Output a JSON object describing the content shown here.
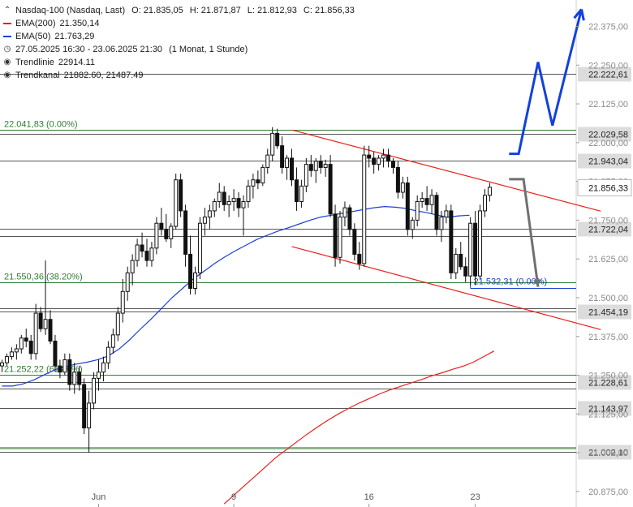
{
  "legend": {
    "instrument": "Nasdaq-100 (Nasdaq, Last)",
    "open": "O: 21.835,05",
    "high": "H: 21.871,87",
    "low": "L: 21.812,93",
    "close": "C: 21.856,33",
    "ema200_label": "EMA(200)",
    "ema200_value": "21.350,14",
    "ema50_label": "EMA(50)",
    "ema50_value": "21.763,29",
    "period": "27.05.2025 16:30 - 23.06.2025 21:30",
    "period_detail": "(1 Monat, 1 Stunde)",
    "trendline_label": "Trendlinie",
    "trendline_value": "22914.11",
    "trendchannel_label": "Trendkanal",
    "trendchannel_value": "21882.60, 21487.49"
  },
  "colors": {
    "ema200": "#e8211c",
    "ema50": "#1a3fd6",
    "fib": "#2e7d32",
    "trend": "#e8211c",
    "projection_up": "#1240e0",
    "projection_down": "#707070",
    "candle": "#111111",
    "price_box": "#ffffff",
    "level_box": "#dcdcdc"
  },
  "chart_data": {
    "type": "candlestick",
    "ylim": [
      20825,
      22460
    ],
    "yticks": [
      {
        "value": 20875,
        "label": "20.875,00"
      },
      {
        "value": 21000,
        "label": "21.000,00"
      },
      {
        "value": 21125,
        "label": "21.125,00"
      },
      {
        "value": 21250,
        "label": "21.250,00"
      },
      {
        "value": 21375,
        "label": "21.375,00"
      },
      {
        "value": 21500,
        "label": "21.500,00"
      },
      {
        "value": 21625,
        "label": "21.625,00"
      },
      {
        "value": 21750,
        "label": "21.750,00"
      },
      {
        "value": 21875,
        "label": "21.875,00"
      },
      {
        "value": 22000,
        "label": "22.000,00"
      },
      {
        "value": 22125,
        "label": "22.125,00"
      },
      {
        "value": 22250,
        "label": "22.250,00"
      },
      {
        "value": 22375,
        "label": "22.375,00"
      }
    ],
    "xticks": [
      {
        "idx": 20,
        "label": "Jun"
      },
      {
        "idx": 48,
        "label": "9"
      },
      {
        "idx": 76,
        "label": "16"
      },
      {
        "idx": 98,
        "label": "23"
      }
    ],
    "current_price": {
      "value": 21856.33,
      "label": "21.856,33"
    },
    "levels": [
      {
        "value": 22222.61,
        "label": "22.222,61"
      },
      {
        "value": 22029.58,
        "label": "22.029,58"
      },
      {
        "value": 21943.04,
        "label": "21.943,04"
      },
      {
        "value": 21722.04,
        "label": "21.722,04"
      },
      {
        "value": 21700.0,
        "label": ""
      },
      {
        "value": 21465.0,
        "label": ""
      },
      {
        "value": 21454.19,
        "label": "21.454,19"
      },
      {
        "value": 21228.61,
        "label": "21.228,61"
      },
      {
        "value": 21208.0,
        "label": ""
      },
      {
        "value": 21143.97,
        "label": "21.143,97"
      },
      {
        "value": 21002.1,
        "label": "21.002,10"
      }
    ],
    "fib_levels": [
      {
        "value": 22041.83,
        "label": "22.041,83 (0.00%)"
      },
      {
        "value": 21550.36,
        "label": "21.550,36 (38.20%)"
      },
      {
        "value": 21252.22,
        "label": "21.252,22 (61.80%)"
      },
      {
        "value": 21015.0,
        "label": ""
      }
    ],
    "fib_target": {
      "value": 21532.3,
      "label": "21.532,31 (0.00%)"
    },
    "trend_upper": [
      {
        "idx": 60,
        "y": 22041
      },
      {
        "idx": 124,
        "y": 21779
      }
    ],
    "trend_lower": [
      {
        "idx": 60,
        "y": 21665
      },
      {
        "idx": 124,
        "y": 21397
      }
    ],
    "projection_up": [
      [
        105,
        21964
      ],
      [
        107,
        21964
      ],
      [
        111,
        22260
      ],
      [
        114,
        22055
      ],
      [
        120,
        22430
      ]
    ],
    "projection_down": [
      [
        105,
        21882
      ],
      [
        108,
        21882
      ],
      [
        111,
        21535
      ]
    ],
    "candles": [
      [
        21280,
        21300,
        21260,
        21290
      ],
      [
        21290,
        21320,
        21280,
        21310
      ],
      [
        21310,
        21340,
        21300,
        21325
      ],
      [
        21325,
        21350,
        21300,
        21335
      ],
      [
        21335,
        21380,
        21320,
        21370
      ],
      [
        21370,
        21400,
        21340,
        21360
      ],
      [
        21360,
        21380,
        21300,
        21320
      ],
      [
        21320,
        21480,
        21300,
        21450
      ],
      [
        21450,
        21470,
        21390,
        21400
      ],
      [
        21400,
        21620,
        21380,
        21430
      ],
      [
        21430,
        21460,
        21350,
        21360
      ],
      [
        21360,
        21380,
        21260,
        21280
      ],
      [
        21280,
        21300,
        21240,
        21260
      ],
      [
        21260,
        21320,
        21250,
        21300
      ],
      [
        21300,
        21320,
        21200,
        21220
      ],
      [
        21220,
        21290,
        21190,
        21260
      ],
      [
        21260,
        21280,
        21200,
        21220
      ],
      [
        21220,
        21240,
        21060,
        21080
      ],
      [
        21080,
        21200,
        21000,
        21160
      ],
      [
        21160,
        21260,
        21140,
        21240
      ],
      [
        21240,
        21300,
        21200,
        21260
      ],
      [
        21260,
        21310,
        21230,
        21290
      ],
      [
        21290,
        21360,
        21270,
        21340
      ],
      [
        21340,
        21400,
        21320,
        21380
      ],
      [
        21380,
        21470,
        21360,
        21450
      ],
      [
        21450,
        21560,
        21420,
        21520
      ],
      [
        21520,
        21600,
        21490,
        21580
      ],
      [
        21580,
        21640,
        21540,
        21620
      ],
      [
        21620,
        21690,
        21600,
        21670
      ],
      [
        21670,
        21710,
        21630,
        21650
      ],
      [
        21650,
        21690,
        21600,
        21620
      ],
      [
        21620,
        21680,
        21600,
        21660
      ],
      [
        21660,
        21760,
        21640,
        21740
      ],
      [
        21740,
        21790,
        21700,
        21720
      ],
      [
        21720,
        21770,
        21680,
        21690
      ],
      [
        21690,
        21740,
        21660,
        21730
      ],
      [
        21730,
        21900,
        21720,
        21880
      ],
      [
        21880,
        21900,
        21760,
        21780
      ],
      [
        21780,
        21800,
        21600,
        21640
      ],
      [
        21640,
        21700,
        21510,
        21530
      ],
      [
        21530,
        21600,
        21510,
        21580
      ],
      [
        21580,
        21760,
        21560,
        21740
      ],
      [
        21740,
        21790,
        21700,
        21760
      ],
      [
        21760,
        21800,
        21720,
        21780
      ],
      [
        21780,
        21820,
        21760,
        21810
      ],
      [
        21810,
        21870,
        21790,
        21840
      ],
      [
        21840,
        21860,
        21780,
        21800
      ],
      [
        21800,
        21830,
        21760,
        21810
      ],
      [
        21810,
        21850,
        21780,
        21820
      ],
      [
        21820,
        21840,
        21760,
        21790
      ],
      [
        21790,
        21830,
        21700,
        21810
      ],
      [
        21810,
        21880,
        21790,
        21860
      ],
      [
        21860,
        21900,
        21820,
        21880
      ],
      [
        21880,
        21910,
        21850,
        21870
      ],
      [
        21870,
        21930,
        21860,
        21920
      ],
      [
        21920,
        21980,
        21900,
        21960
      ],
      [
        21960,
        22050,
        21940,
        22030
      ],
      [
        22030,
        22045,
        21980,
        21990
      ],
      [
        21990,
        22020,
        21900,
        21920
      ],
      [
        21920,
        21960,
        21880,
        21950
      ],
      [
        21950,
        21980,
        21860,
        21880
      ],
      [
        21880,
        21920,
        21780,
        21810
      ],
      [
        21810,
        21880,
        21790,
        21860
      ],
      [
        21860,
        21950,
        21840,
        21930
      ],
      [
        21930,
        21960,
        21890,
        21910
      ],
      [
        21910,
        21950,
        21870,
        21940
      ],
      [
        21940,
        21960,
        21900,
        21920
      ],
      [
        21920,
        21945,
        21890,
        21930
      ],
      [
        21930,
        21960,
        21760,
        21770
      ],
      [
        21770,
        21800,
        21600,
        21630
      ],
      [
        21630,
        21780,
        21610,
        21760
      ],
      [
        21760,
        21810,
        21730,
        21790
      ],
      [
        21790,
        21800,
        21700,
        21720
      ],
      [
        21720,
        21740,
        21620,
        21640
      ],
      [
        21640,
        21680,
        21590,
        21610
      ],
      [
        21610,
        21990,
        21600,
        21960
      ],
      [
        21960,
        21990,
        21920,
        21950
      ],
      [
        21950,
        21970,
        21900,
        21930
      ],
      [
        21930,
        21960,
        21910,
        21950
      ],
      [
        21950,
        21980,
        21920,
        21960
      ],
      [
        21960,
        21980,
        21920,
        21940
      ],
      [
        21940,
        21950,
        21900,
        21920
      ],
      [
        21920,
        21940,
        21820,
        21840
      ],
      [
        21840,
        21890,
        21820,
        21870
      ],
      [
        21870,
        21890,
        21700,
        21720
      ],
      [
        21720,
        21760,
        21690,
        21750
      ],
      [
        21750,
        21830,
        21730,
        21810
      ],
      [
        21810,
        21840,
        21790,
        21820
      ],
      [
        21820,
        21860,
        21780,
        21800
      ],
      [
        21800,
        21850,
        21770,
        21830
      ],
      [
        21830,
        21840,
        21700,
        21720
      ],
      [
        21720,
        21780,
        21680,
        21760
      ],
      [
        21760,
        21800,
        21740,
        21780
      ],
      [
        21780,
        21800,
        21560,
        21580
      ],
      [
        21580,
        21660,
        21560,
        21640
      ],
      [
        21640,
        21680,
        21590,
        21600
      ],
      [
        21600,
        21630,
        21550,
        21570
      ],
      [
        21570,
        21760,
        21540,
        21740
      ],
      [
        21740,
        21780,
        21540,
        21570
      ],
      [
        21570,
        21800,
        21560,
        21780
      ],
      [
        21780,
        21850,
        21760,
        21830
      ],
      [
        21830,
        21870,
        21810,
        21856
      ]
    ],
    "ema50": [
      21215,
      21215,
      21222,
      21235,
      21252,
      21268,
      21278,
      21286,
      21292,
      21300,
      21312,
      21334,
      21364,
      21398,
      21430,
      21465,
      21500,
      21530,
      21560,
      21585,
      21610,
      21632,
      21652,
      21670,
      21688,
      21702,
      21715,
      21726,
      21738,
      21750,
      21760,
      21766,
      21772,
      21778,
      21784,
      21790,
      21794,
      21792,
      21788,
      21780,
      21774,
      21766,
      21760,
      21764,
      21766
    ],
    "ema50_start_idx": 0,
    "ema50_step": 2.2,
    "ema200": [
      20835,
      20865,
      20895,
      20925,
      20955,
      20985,
      21010,
      21035,
      21060,
      21083,
      21105,
      21125,
      21143,
      21160,
      21175,
      21190,
      21203,
      21214,
      21225,
      21236,
      21248,
      21258,
      21269,
      21279,
      21292,
      21310,
      21328
    ],
    "ema200_start_idx": 46,
    "ema200_step": 2.15
  }
}
